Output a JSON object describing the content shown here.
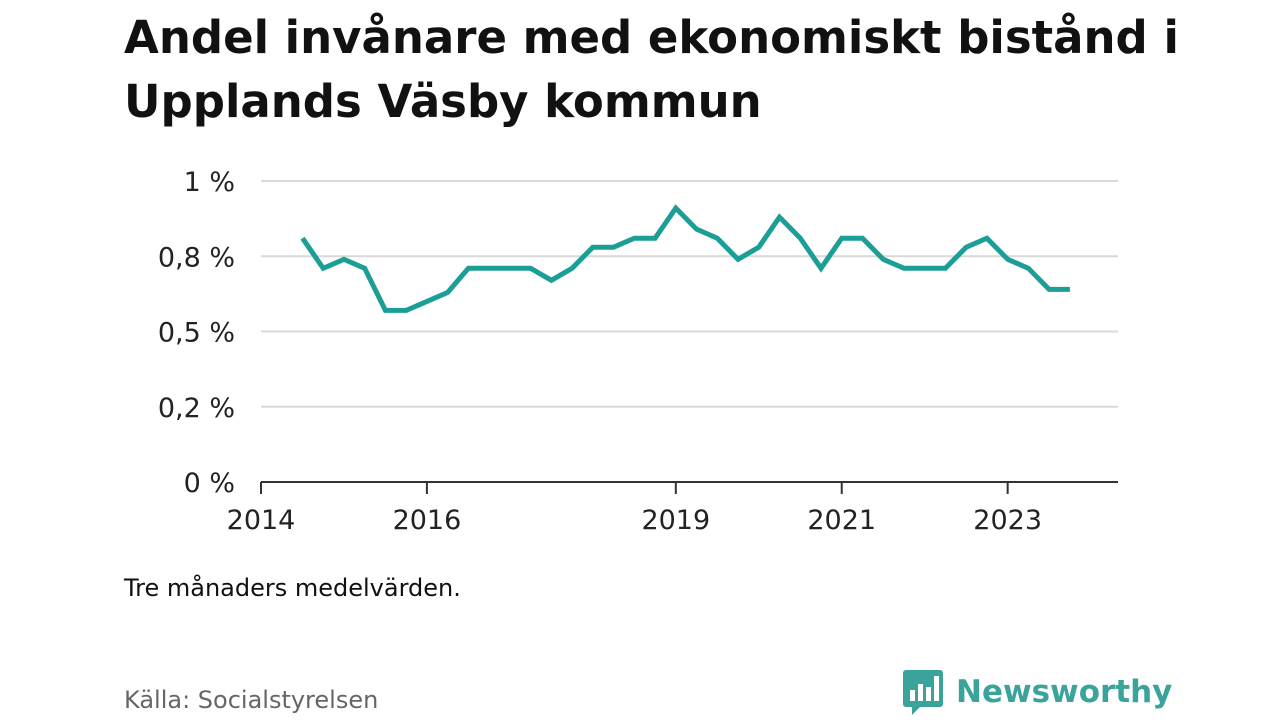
{
  "title": "Andel invånare med ekonomiskt bistånd i Upplands Väsby kommun",
  "note": "Tre månaders medelvärden.",
  "source": "Källa: Socialstyrelsen",
  "brand": {
    "name": "Newsworthy",
    "icon": "newsworthy-chart-bubble-icon",
    "color": "#3aa39a"
  },
  "chart_data": {
    "type": "line",
    "title": "Andel invånare med ekonomiskt bistånd i Upplands Väsby kommun",
    "xlabel": "",
    "ylabel": "",
    "xlim": [
      2014.0,
      2024.33
    ],
    "ylim": [
      0,
      1
    ],
    "y_ticks": [
      0,
      0.25,
      0.5,
      0.75,
      1
    ],
    "y_tick_labels": [
      "0 %",
      "0,2 %",
      "0,5 %",
      "0,8 %",
      "1 %"
    ],
    "x_ticks": [
      2014,
      2016,
      2019,
      2021,
      2023
    ],
    "x_tick_labels": [
      "2014",
      "2016",
      "2019",
      "2021",
      "2023"
    ],
    "grid": true,
    "line_color": "#1a9e96",
    "series": [
      {
        "x": [
          2014.5,
          2014.75,
          2015.0,
          2015.25,
          2015.5,
          2015.75,
          2016.0,
          2016.25,
          2016.5,
          2016.75,
          2017.0,
          2017.25,
          2017.5,
          2017.75,
          2018.0,
          2018.25,
          2018.5,
          2018.75,
          2019.0,
          2019.25,
          2019.5,
          2019.75,
          2020.0,
          2020.25,
          2020.5,
          2020.75,
          2021.0,
          2021.25,
          2021.5,
          2021.75,
          2022.0,
          2022.25,
          2022.5,
          2022.75,
          2023.0,
          2023.25,
          2023.5,
          2023.75
        ],
        "values": [
          0.81,
          0.71,
          0.74,
          0.71,
          0.57,
          0.57,
          0.6,
          0.63,
          0.71,
          0.71,
          0.71,
          0.71,
          0.67,
          0.71,
          0.78,
          0.78,
          0.81,
          0.81,
          0.91,
          0.84,
          0.81,
          0.74,
          0.78,
          0.88,
          0.81,
          0.71,
          0.81,
          0.81,
          0.74,
          0.71,
          0.71,
          0.71,
          0.78,
          0.81,
          0.74,
          0.71,
          0.64,
          0.64
        ]
      }
    ]
  }
}
